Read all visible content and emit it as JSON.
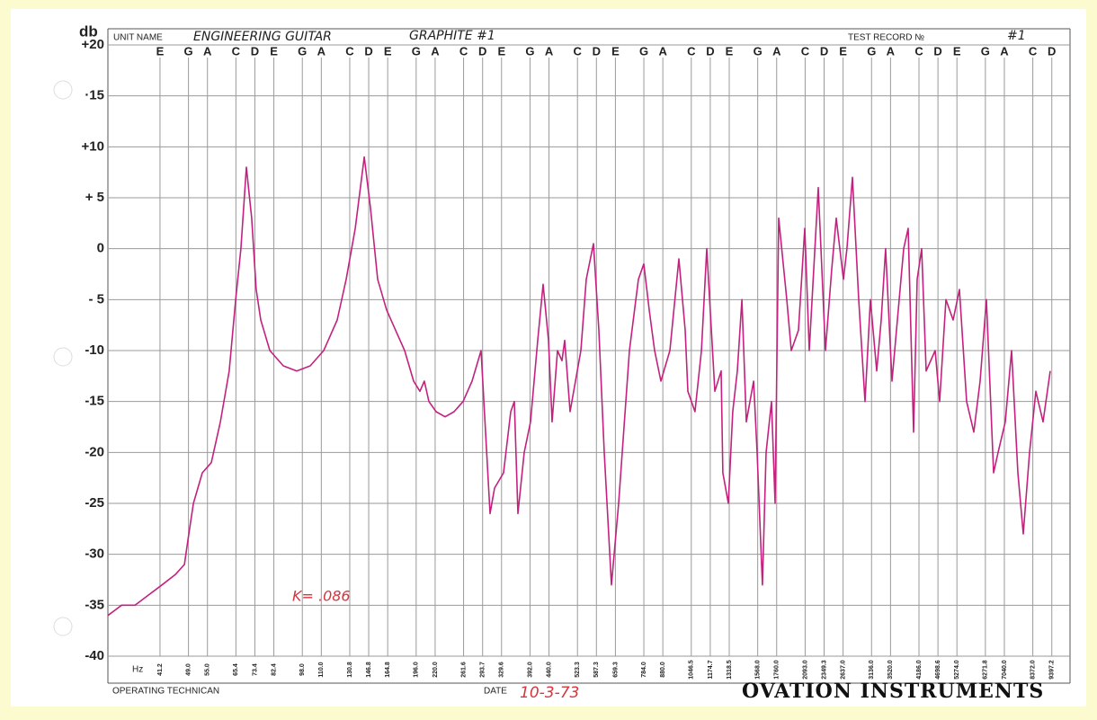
{
  "chart_data": {
    "type": "line",
    "y_label": "db",
    "x_label": "Hz",
    "unit_name_label": "UNIT NAME",
    "unit_name": "ENGINEERING GUITAR",
    "model": "GRAPHITE #1",
    "test_record_label": "TEST RECORD №",
    "test_record": "#1",
    "annotation": "K= .086",
    "technician_label": "OPERATING TECHNICAN",
    "date_label": "DATE",
    "date": "10-3-73",
    "brand": "OVATION INSTRUMENTS",
    "xscale": "log",
    "grid": true,
    "color": "#c2227e",
    "xlim": [
      30,
      10500
    ],
    "ylim": [
      -40,
      20
    ],
    "yticks": [
      {
        "value": 20,
        "label": "+20"
      },
      {
        "value": 15,
        "label": "·15"
      },
      {
        "value": 10,
        "label": "+10"
      },
      {
        "value": 5,
        "label": "+ 5"
      },
      0,
      {
        "value": -5,
        "label": "- 5"
      },
      -10,
      -15,
      -20,
      -25,
      -30,
      -35,
      -40
    ],
    "xticks": [
      41.2,
      {
        "value": 49,
        "label": "49.0"
      },
      {
        "value": 55,
        "label": "55.0"
      },
      65.4,
      73.4,
      82.4,
      {
        "value": 98,
        "label": "98.0"
      },
      {
        "value": 110,
        "label": "110.0"
      },
      130.8,
      146.8,
      164.8,
      {
        "value": 196,
        "label": "196.0"
      },
      {
        "value": 220,
        "label": "220.0"
      },
      261.6,
      293.7,
      329.6,
      {
        "value": 392,
        "label": "392.0"
      },
      {
        "value": 440,
        "label": "440.0"
      },
      523.3,
      587.3,
      659.3,
      {
        "value": 784,
        "label": "784.0"
      },
      {
        "value": 880,
        "label": "880.0"
      },
      1046.5,
      1174.7,
      1318.5,
      {
        "value": 1568,
        "label": "1568.0"
      },
      {
        "value": 1760,
        "label": "1760.0"
      },
      {
        "value": 2093,
        "label": "2093.0"
      },
      2349.3,
      {
        "value": 2637,
        "label": "2637.0"
      },
      {
        "value": 3136,
        "label": "3136.0"
      },
      {
        "value": 3520,
        "label": "3520.0"
      },
      {
        "value": 4186,
        "label": "4186.0"
      },
      4698.6,
      {
        "value": 5274,
        "label": "5274.0"
      },
      6271.8,
      {
        "value": 7040,
        "label": "7040.0"
      },
      {
        "value": 8372,
        "label": "8372.0"
      },
      9397.2
    ],
    "notes": [
      "E",
      "G",
      "A",
      "C",
      "D",
      "E",
      "G",
      "A",
      "C",
      "D",
      "E",
      "G",
      "A",
      "C",
      "D",
      "E",
      "G",
      "A",
      "C",
      "D",
      "E",
      "G",
      "A",
      "C",
      "D",
      "E",
      "G",
      "A",
      "C",
      "D",
      "E",
      "G",
      "A",
      "C",
      "D",
      "E",
      "G",
      "A",
      "C",
      "D"
    ],
    "x": [
      30,
      32.6,
      35.4,
      38.4,
      41.7,
      45.2,
      47.8,
      49.1,
      50.5,
      53.3,
      56.3,
      59.5,
      62.8,
      65.3,
      67.4,
      69.7,
      72,
      74,
      76.1,
      80.4,
      87.3,
      94.7,
      102.8,
      111.6,
      121.2,
      128,
      135.3,
      142.9,
      148.4,
      155,
      163.7,
      172.9,
      182.7,
      193,
      200.5,
      206,
      211.8,
      221.3,
      233.7,
      246.9,
      260.8,
      275.5,
      291,
      307.3,
      315.8,
      333.6,
      348.5,
      356.3,
      364.2,
      378.4,
      393.2,
      410.8,
      424.5,
      438.7,
      448.4,
      463.3,
      476.2,
      484.1,
      500.2,
      517,
      534.3,
      552.1,
      576.8,
      596.1,
      616,
      643.6,
      672.4,
      718,
      758.5,
      783.8,
      809.8,
      836.9,
      869.6,
      918.6,
      970.2,
      1008,
      1025,
      1070,
      1113,
      1150,
      1208,
      1255,
      1268,
      1311,
      1347,
      1385,
      1424,
      1463,
      1529,
      1562,
      1614,
      1650,
      1705,
      1743,
      1782,
      1872,
      1924,
      2010,
      2088,
      2146,
      2206,
      2267,
      2369,
      2461,
      2529,
      2642,
      2700,
      2791,
      2900,
      3014,
      3115,
      3236,
      3325,
      3417,
      3552,
      3710,
      3813,
      3919,
      4050,
      4139,
      4254,
      4372,
      4619,
      4747,
      4933,
      5153,
      5354,
      5594,
      5845,
      6073,
      6310,
      6593,
      6776,
      7080,
      7356,
      7643,
      7899,
      8207,
      8528,
      8909,
      9308
    ],
    "values": [
      -36,
      -35,
      -35,
      -34,
      -33,
      -32,
      -31,
      -28,
      -25,
      -22,
      -21,
      -17,
      -12,
      -5,
      0,
      8,
      3,
      -4,
      -7,
      -10,
      -11.5,
      -12,
      -11.5,
      -10,
      -7,
      -3,
      2,
      9,
      4,
      -3,
      -6,
      -8,
      -10,
      -13,
      -14,
      -13,
      -15,
      -16,
      -16.5,
      -16,
      -15,
      -13,
      -10,
      -26,
      -23.5,
      -22,
      -16,
      -15,
      -26,
      -20,
      -17,
      -9,
      -3.5,
      -9,
      -17,
      -10,
      -11,
      -9,
      -16,
      -13,
      -10,
      -3,
      0.5,
      -8,
      -20,
      -33,
      -25,
      -10,
      -3,
      -1.5,
      -6,
      -10,
      -13,
      -10,
      -1,
      -8,
      -14,
      -16,
      -10,
      0,
      -14,
      -12,
      -22,
      -25,
      -16,
      -12,
      -5,
      -17,
      -13,
      -20,
      -33,
      -20,
      -15,
      -25,
      3,
      -5,
      -10,
      -8,
      2,
      -10,
      -2,
      6,
      -10,
      -2,
      3,
      -3,
      0,
      7,
      -5,
      -15,
      -5,
      -12,
      -7,
      0,
      -13,
      -5,
      0,
      2,
      -18,
      -3,
      0,
      -12,
      -10,
      -15,
      -5,
      -7,
      -4,
      -15,
      -18,
      -13,
      -5,
      -22,
      -20,
      -17,
      -10,
      -22,
      -28,
      -20,
      -14,
      -17,
      -12
    ]
  }
}
